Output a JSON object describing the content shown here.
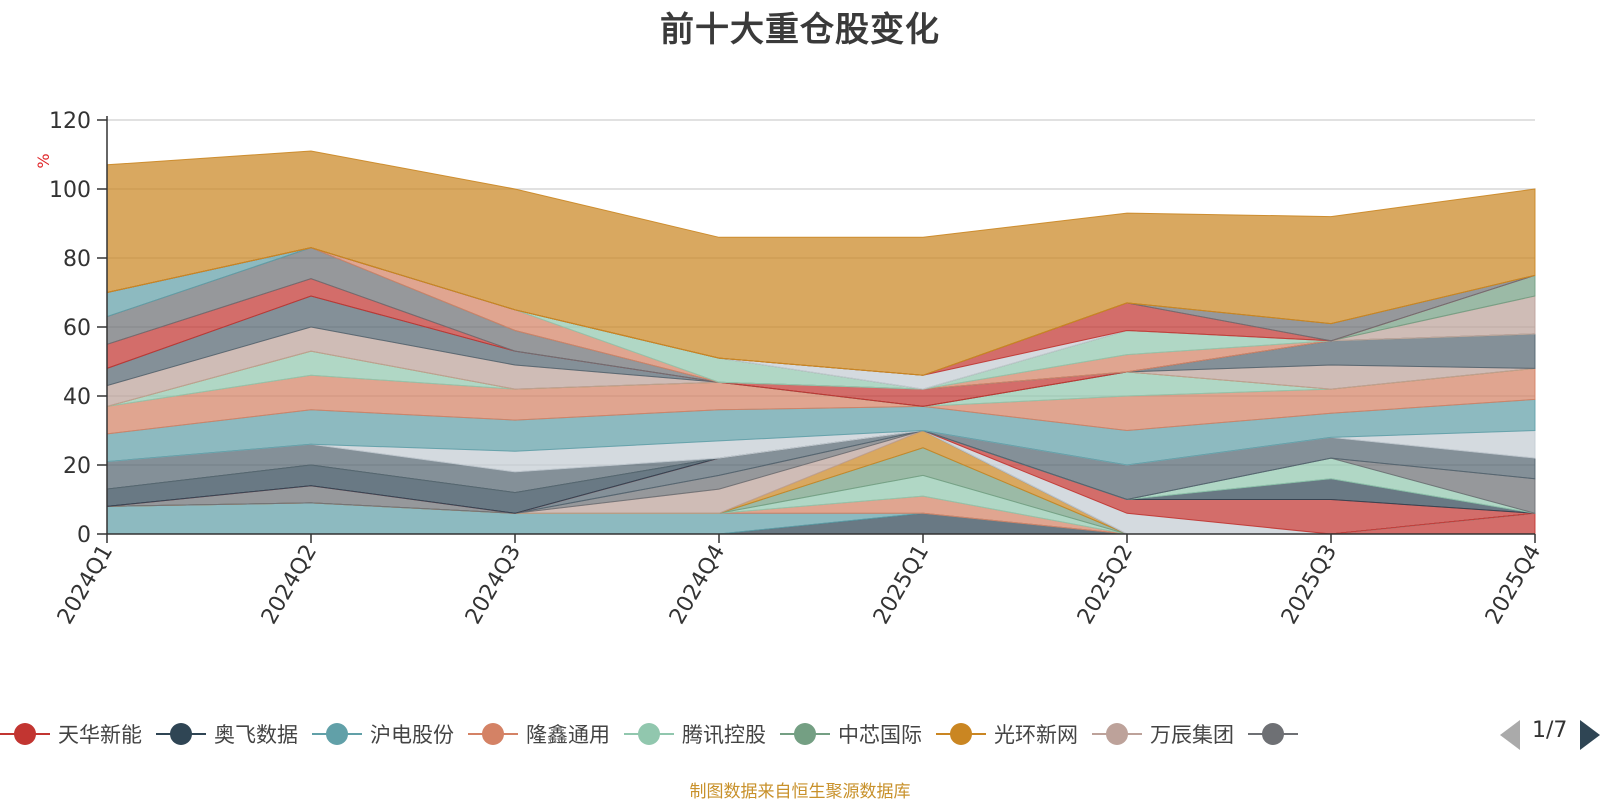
{
  "title": "前十大重仓股变化",
  "source": "制图数据来自恒生聚源数据库",
  "pager": "1/7",
  "chart_data": {
    "type": "area",
    "stacked": true,
    "title": "前十大重仓股变化",
    "ylabel": "%",
    "ylim": [
      0,
      120
    ],
    "yticks": [
      0,
      20,
      40,
      60,
      80,
      100,
      120
    ],
    "grid": true,
    "legend_position": "bottom",
    "categories": [
      "2024Q1",
      "2024Q2",
      "2024Q3",
      "2024Q4",
      "2025Q1",
      "2025Q2",
      "2025Q3",
      "2025Q4"
    ],
    "series": [
      {
        "name": "天华新能",
        "color": "#c23531",
        "values": [
          0,
          0,
          0,
          0,
          0,
          0,
          0,
          6
        ]
      },
      {
        "name": "奥飞数据",
        "color": "#2f4554",
        "values": [
          0,
          0,
          0,
          0,
          6,
          0,
          0,
          0
        ]
      },
      {
        "name": "沪电股份",
        "color": "#61a0a8",
        "values": [
          8,
          9,
          6,
          6,
          0,
          0,
          0,
          0
        ]
      },
      {
        "name": "隆鑫通用",
        "color": "#d48265",
        "values": [
          0,
          0,
          0,
          0,
          5,
          0,
          0,
          0
        ]
      },
      {
        "name": "腾讯控股",
        "color": "#91c7ae",
        "values": [
          0,
          0,
          0,
          0,
          6,
          0,
          0,
          0
        ]
      },
      {
        "name": "中芯国际",
        "color": "#749f83",
        "values": [
          0,
          0,
          0,
          0,
          8,
          0,
          0,
          0
        ]
      },
      {
        "name": "光环新网",
        "color": "#ca8622",
        "values": [
          0,
          0,
          0,
          0,
          5,
          0,
          0,
          0
        ]
      },
      {
        "name": "万辰集团",
        "color": "#bda29a",
        "values": [
          0,
          0,
          0,
          7,
          0,
          0,
          0,
          0
        ]
      },
      {
        "values": [
          0,
          5,
          0,
          4,
          0,
          0,
          0,
          0
        ],
        "color": "#6e7074"
      },
      {
        "values": [
          0,
          0,
          0,
          5,
          0,
          0,
          0,
          0
        ],
        "color": "#546570"
      },
      {
        "values": [
          0,
          0,
          0,
          0,
          0,
          6,
          0,
          0
        ],
        "color": "#c4ccd3"
      },
      {
        "values": [
          0,
          0,
          0,
          0,
          0,
          4,
          10,
          0
        ],
        "color": "#c23531"
      },
      {
        "values": [
          5,
          6,
          6,
          0,
          0,
          0,
          6,
          0
        ],
        "color": "#2f4554"
      },
      {
        "values": [
          0,
          0,
          0,
          0,
          0,
          0,
          6,
          0
        ],
        "color": "#91c7ae"
      },
      {
        "values": [
          0,
          0,
          0,
          0,
          0,
          0,
          0,
          10
        ],
        "color": "#6e7074"
      },
      {
        "values": [
          8,
          6,
          6,
          0,
          0,
          10,
          6,
          6
        ],
        "color": "#546570"
      },
      {
        "values": [
          0,
          0,
          6,
          5,
          0,
          0,
          0,
          8
        ],
        "color": "#c4ccd3"
      },
      {
        "values": [
          8,
          10,
          9,
          9,
          7,
          10,
          7,
          9
        ],
        "color": "#61a0a8"
      },
      {
        "values": [
          8,
          10,
          9,
          8,
          0,
          10,
          7,
          9
        ],
        "color": "#d48265"
      },
      {
        "values": [
          0,
          7,
          0,
          0,
          0,
          7,
          0,
          0
        ],
        "color": "#91c7ae"
      },
      {
        "values": [
          0,
          0,
          0,
          0,
          0,
          0,
          0,
          0
        ],
        "color": "#ca8622"
      },
      {
        "values": [
          6,
          7,
          7,
          0,
          0,
          0,
          7,
          0
        ],
        "color": "#bda29a"
      },
      {
        "values": [
          5,
          9,
          4,
          0,
          0,
          0,
          7,
          10
        ],
        "color": "#546570"
      },
      {
        "values": [
          7,
          5,
          0,
          0,
          5,
          0,
          0,
          0
        ],
        "color": "#c23531"
      },
      {
        "values": [
          8,
          9,
          6,
          0,
          0,
          0,
          0,
          0
        ],
        "color": "#6e7074"
      },
      {
        "values": [
          7,
          0,
          0,
          0,
          0,
          0,
          0,
          0
        ],
        "color": "#61a0a8"
      },
      {
        "values": [
          0,
          0,
          6,
          0,
          0,
          5,
          0,
          0
        ],
        "color": "#d48265"
      },
      {
        "values": [
          0,
          0,
          0,
          7,
          0,
          7,
          0,
          0
        ],
        "color": "#91c7ae"
      },
      {
        "values": [
          0,
          0,
          0,
          0,
          0,
          0,
          0,
          11
        ],
        "color": "#bda29a"
      },
      {
        "values": [
          0,
          0,
          0,
          0,
          0,
          0,
          0,
          6
        ],
        "color": "#749f83"
      },
      {
        "values": [
          0,
          0,
          0,
          0,
          4,
          0,
          0,
          0
        ],
        "color": "#c4ccd3"
      },
      {
        "values": [
          0,
          0,
          0,
          0,
          0,
          8,
          0,
          0
        ],
        "color": "#c23531"
      },
      {
        "values": [
          0,
          0,
          0,
          0,
          0,
          0,
          5,
          0
        ],
        "color": "#6e7074"
      },
      {
        "values": [
          0,
          0,
          0,
          0,
          0,
          0,
          0,
          0
        ],
        "color": "#ca8622"
      },
      {
        "values": [
          37,
          28,
          35,
          35,
          40,
          26,
          31,
          25
        ],
        "color": "#ca8622"
      }
    ]
  }
}
